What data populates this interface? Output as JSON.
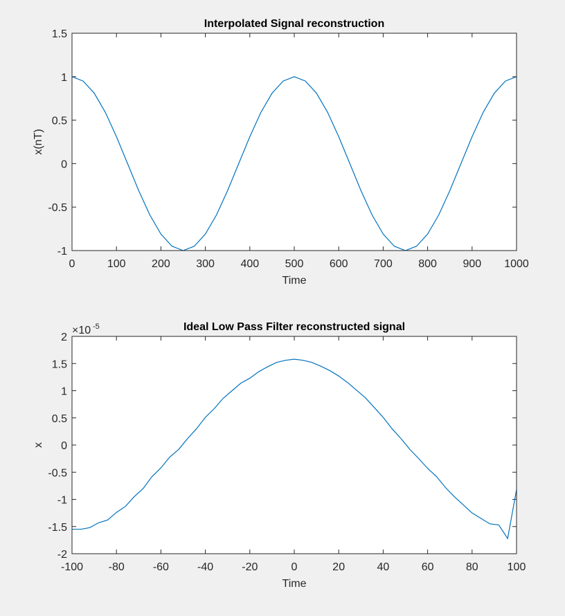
{
  "chart_data": [
    {
      "type": "line",
      "title": "Interpolated Signal reconstruction",
      "x_label": "Time",
      "y_label": "x(nT)",
      "x": [
        0,
        25,
        50,
        75,
        100,
        125,
        150,
        175,
        200,
        225,
        250,
        275,
        300,
        325,
        350,
        375,
        400,
        425,
        450,
        475,
        500,
        525,
        550,
        575,
        600,
        625,
        650,
        675,
        700,
        725,
        750,
        775,
        800,
        825,
        850,
        875,
        900,
        925,
        950,
        975,
        1000
      ],
      "series": [
        {
          "color": "#0072bd",
          "values": [
            1,
            0.95,
            0.81,
            0.59,
            0.31,
            0,
            -0.31,
            -0.59,
            -0.81,
            -0.95,
            -1,
            -0.95,
            -0.81,
            -0.59,
            -0.31,
            0,
            0.31,
            0.59,
            0.81,
            0.95,
            1,
            0.95,
            0.81,
            0.59,
            0.31,
            0,
            -0.31,
            -0.59,
            -0.81,
            -0.95,
            -1,
            -0.95,
            -0.81,
            -0.59,
            -0.31,
            0,
            0.31,
            0.59,
            0.81,
            0.95,
            1
          ]
        }
      ],
      "xlim": [
        0,
        1000
      ],
      "xticks": [
        0,
        100,
        200,
        300,
        400,
        500,
        600,
        700,
        800,
        900,
        1000
      ],
      "ylim": [
        -1,
        1.5
      ],
      "yticks": [
        -1,
        -0.5,
        0,
        0.5,
        1,
        1.5
      ]
    },
    {
      "type": "line",
      "title": "Ideal Low Pass Filter reconstructed signal",
      "x_label": "Time",
      "y_label": "x",
      "y_exponent_base": "×10",
      "y_exponent": "-5",
      "x": [
        -100,
        -96,
        -92,
        -88,
        -84,
        -80,
        -76,
        -72,
        -68,
        -64,
        -60,
        -56,
        -52,
        -48,
        -44,
        -40,
        -36,
        -32,
        -28,
        -24,
        -20,
        -16,
        -12,
        -8,
        -4,
        0,
        4,
        8,
        12,
        16,
        20,
        24,
        28,
        32,
        36,
        40,
        44,
        48,
        52,
        56,
        60,
        64,
        68,
        72,
        76,
        80,
        84,
        88,
        92,
        96,
        100
      ],
      "series": [
        {
          "color": "#0072bd",
          "values": [
            -1.55,
            -1.55,
            -1.52,
            -1.43,
            -1.38,
            -1.24,
            -1.13,
            -0.95,
            -0.8,
            -0.58,
            -0.42,
            -0.22,
            -0.08,
            0.12,
            0.3,
            0.51,
            0.67,
            0.86,
            1.0,
            1.14,
            1.23,
            1.35,
            1.44,
            1.52,
            1.56,
            1.58,
            1.56,
            1.52,
            1.45,
            1.37,
            1.27,
            1.15,
            1.01,
            0.87,
            0.69,
            0.51,
            0.3,
            0.12,
            -0.08,
            -0.25,
            -0.43,
            -0.58,
            -0.78,
            -0.95,
            -1.1,
            -1.25,
            -1.35,
            -1.45,
            -1.47,
            -1.72,
            -0.82
          ]
        }
      ],
      "xlim": [
        -100,
        100
      ],
      "xticks": [
        -100,
        -80,
        -60,
        -40,
        -20,
        0,
        20,
        40,
        60,
        80,
        100
      ],
      "ylim": [
        -2,
        2
      ],
      "yticks": [
        -2,
        -1.5,
        -1,
        -0.5,
        0,
        0.5,
        1,
        1.5,
        2
      ]
    }
  ]
}
